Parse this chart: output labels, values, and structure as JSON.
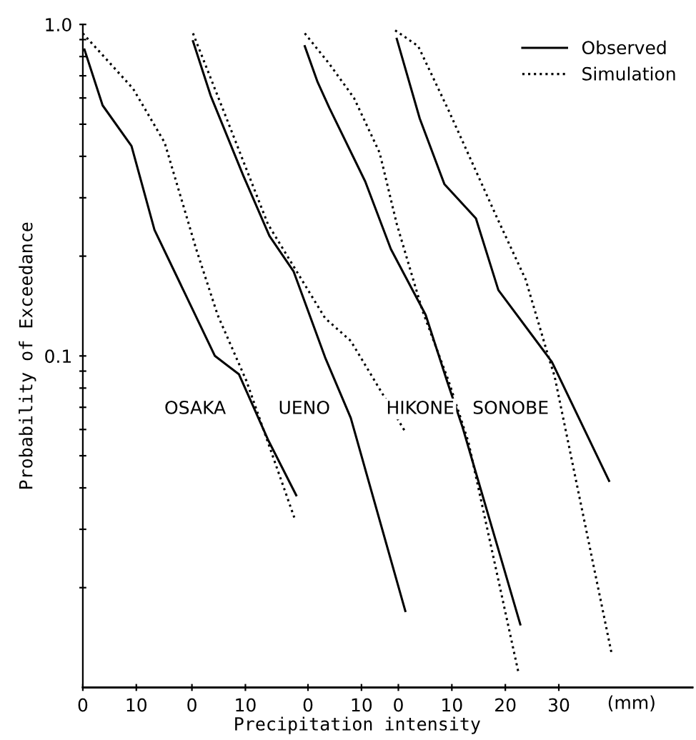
{
  "chart_data": [
    {
      "type": "line",
      "title": "OSAKA",
      "ylabel": "Probability of Exceedance",
      "xlabel": "Precipitation intensity",
      "log": "y",
      "xlim": [
        0,
        114
      ],
      "ylim": [
        0.01,
        1.0
      ],
      "xticks": [
        0,
        10
      ],
      "yticks": [
        {
          "value": 1.0,
          "label": "1.0"
        },
        {
          "value": 0.9,
          "label": null
        },
        {
          "value": 0.8,
          "label": null
        },
        {
          "value": 0.7,
          "label": null
        },
        {
          "value": 0.6,
          "label": null
        },
        {
          "value": 0.5,
          "label": null
        },
        {
          "value": 0.4,
          "label": null
        },
        {
          "value": 0.3,
          "label": null
        },
        {
          "value": 0.2,
          "label": null
        },
        {
          "value": 0.1,
          "label": "0.1"
        },
        {
          "value": 0.09,
          "label": null
        },
        {
          "value": 0.08,
          "label": null
        },
        {
          "value": 0.07,
          "label": null
        },
        {
          "value": 0.06,
          "label": null
        },
        {
          "value": 0.05,
          "label": null
        },
        {
          "value": 0.04,
          "label": null
        },
        {
          "value": 0.03,
          "label": null
        },
        {
          "value": 0.02,
          "label": null
        }
      ],
      "series": [
        {
          "color": "#000000",
          "line_style": "solid",
          "x": [
            0.3,
            3.7,
            9.1,
            13.4,
            24.7,
            29.2,
            34.6,
            39.9
          ],
          "values": [
            0.84,
            0.57,
            0.43,
            0.24,
            0.1,
            0.088,
            0.056,
            0.038
          ]
        },
        {
          "color": "#000000",
          "line_style": "dotted",
          "x": [
            0,
            9.4,
            15.3,
            21.2,
            25.2,
            30.6,
            39.7
          ],
          "values": [
            0.94,
            0.64,
            0.44,
            0.21,
            0.133,
            0.084,
            0.032
          ]
        }
      ]
    },
    {
      "type": "line",
      "title": "UENO",
      "log": "y",
      "xlim": [
        -20.4,
        93.6
      ],
      "ylim": [
        0.01,
        1.0
      ],
      "xticks": [
        0,
        10
      ],
      "tick_labels": "x",
      "series": [
        {
          "color": "#000000",
          "line_style": "solid",
          "x": [
            0.2,
            3.5,
            9.6,
            14.5,
            19.0,
            24.9,
            29.7,
            39.9
          ],
          "values": [
            0.89,
            0.61,
            0.35,
            0.23,
            0.18,
            0.099,
            0.065,
            0.017
          ]
        },
        {
          "color": "#000000",
          "line_style": "dotted",
          "x": [
            0.2,
            6.9,
            14.2,
            24.9,
            29.7,
            39.9
          ],
          "values": [
            0.94,
            0.5,
            0.25,
            0.13,
            0.111,
            0.059
          ]
        }
      ]
    },
    {
      "type": "line",
      "title": "HIKONE",
      "log": "y",
      "xlim": [
        -42.1,
        71.9
      ],
      "ylim": [
        0.01,
        1.0
      ],
      "xticks": [
        0,
        10
      ],
      "tick_labels": "x",
      "series": [
        {
          "color": "#000000",
          "line_style": "solid",
          "x": [
            -0.6,
            1.8,
            4.0,
            10.7,
            15.5,
            22.0,
            26.0,
            28.9,
            39.7
          ],
          "values": [
            0.86,
            0.67,
            0.56,
            0.336,
            0.21,
            0.133,
            0.084,
            0.061,
            0.0155
          ]
        },
        {
          "color": "#000000",
          "line_style": "dotted",
          "x": [
            -0.6,
            4.0,
            8.6,
            13.4,
            16.6,
            21.4,
            26.3,
            30.0,
            39.4
          ],
          "values": [
            0.94,
            0.76,
            0.6,
            0.41,
            0.25,
            0.137,
            0.084,
            0.055,
            0.011
          ]
        }
      ]
    },
    {
      "type": "line",
      "title": "SONOBE",
      "log": "y",
      "xlim": [
        -59,
        55
      ],
      "ylim": [
        0.01,
        1.0
      ],
      "xticks": [
        0,
        10,
        20,
        30
      ],
      "tick_labels": "x",
      "legend": "top right",
      "annotations": [
        "(mm)"
      ],
      "series": [
        {
          "name": "Observed",
          "color": "#000000",
          "line_style": "solid",
          "x": [
            -0.3,
            4.0,
            8.6,
            14.5,
            18.7,
            28.7,
            39.4
          ],
          "values": [
            0.905,
            0.52,
            0.33,
            0.26,
            0.158,
            0.096,
            0.042
          ]
        },
        {
          "name": "Simulation",
          "color": "#000000",
          "line_style": "dotted",
          "x": [
            -0.6,
            3.7,
            9.4,
            18.5,
            23.8,
            28.1,
            29.2,
            39.9
          ],
          "values": [
            0.96,
            0.86,
            0.55,
            0.26,
            0.17,
            0.099,
            0.087,
            0.0126
          ]
        }
      ]
    }
  ]
}
